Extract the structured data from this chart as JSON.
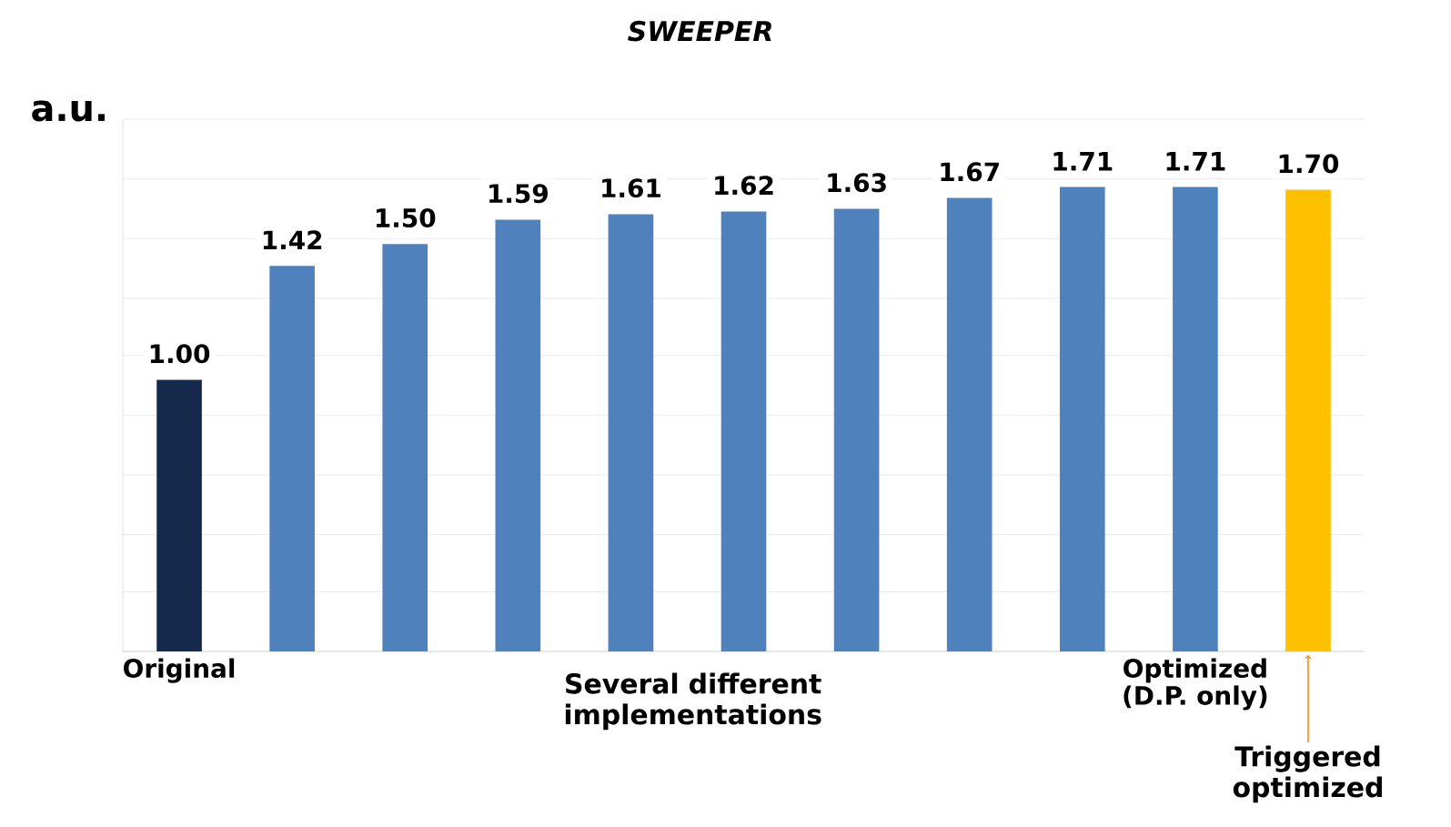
{
  "chart_data": {
    "type": "bar",
    "title": "*SWEEPER*",
    "ylabel": "a.u.",
    "categories": [
      "Original",
      null,
      null,
      null,
      null,
      null,
      null,
      null,
      null,
      "Optimized (D.P. only)",
      null
    ],
    "values": [
      1.0,
      1.42,
      1.5,
      1.59,
      1.61,
      1.62,
      1.63,
      1.67,
      1.71,
      1.71,
      1.7
    ],
    "value_labels": [
      "1.00",
      "1.42",
      "1.50",
      "1.59",
      "1.61",
      "1.62",
      "1.63",
      "1.67",
      "1.71",
      "1.71",
      "1.70"
    ],
    "colors": [
      "#152a4a",
      "#4f81bd",
      "#4f81bd",
      "#4f81bd",
      "#4f81bd",
      "#4f81bd",
      "#4f81bd",
      "#4f81bd",
      "#4f81bd",
      "#4f81bd",
      "#ffc000"
    ],
    "ylim": [
      0,
      1.96
    ],
    "yticks": [
      {
        "value": 0,
        "label": null
      },
      {
        "value": 0.22,
        "label": null
      },
      {
        "value": 0.43,
        "label": null
      },
      {
        "value": 0.65,
        "label": null
      },
      {
        "value": 0.87,
        "label": null
      },
      {
        "value": 1.09,
        "label": null
      },
      {
        "value": 1.3,
        "label": null
      },
      {
        "value": 1.52,
        "label": null
      },
      {
        "value": 1.74,
        "label": null
      },
      {
        "value": 1.96,
        "label": null
      }
    ],
    "grid": "y",
    "tick_labels": "x",
    "annotations": [
      "Several different implementations",
      "Triggered optimized"
    ]
  }
}
